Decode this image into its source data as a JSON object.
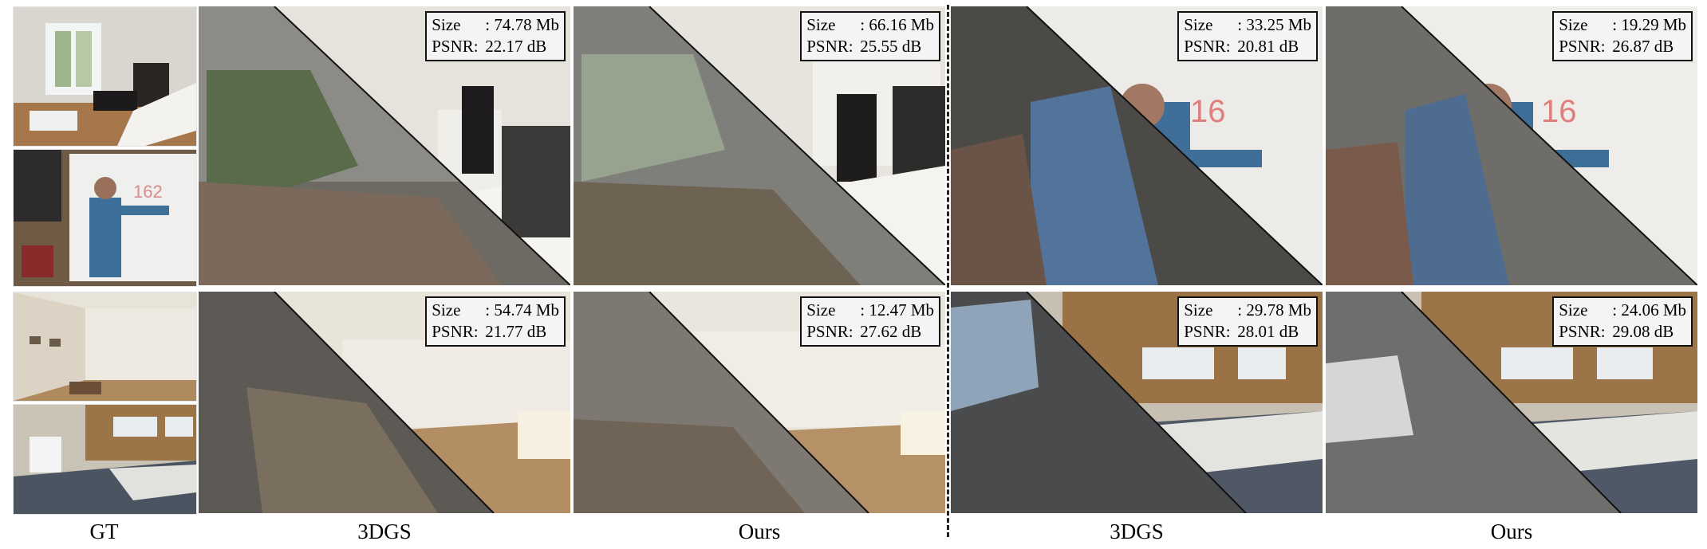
{
  "captions": {
    "gt": "GT",
    "left_3dgs": "3DGS",
    "left_ours": "Ours",
    "right_3dgs": "3DGS",
    "right_ours": "Ours"
  },
  "panels": {
    "top_left_3dgs": {
      "size_key": "Size",
      "size_val": ": 74.78 Mb",
      "psnr_key": "PSNR:",
      "psnr_val": "22.17 dB"
    },
    "top_left_ours": {
      "size_key": "Size",
      "size_val": ": 66.16 Mb",
      "psnr_key": "PSNR:",
      "psnr_val": "25.55 dB"
    },
    "top_right_3dgs": {
      "size_key": "Size",
      "size_val": ": 33.25 Mb",
      "psnr_key": "PSNR:",
      "psnr_val": "20.81 dB"
    },
    "top_right_ours": {
      "size_key": "Size",
      "size_val": ": 19.29 Mb",
      "psnr_key": "PSNR:",
      "psnr_val": "26.87 dB"
    },
    "bot_left_3dgs": {
      "size_key": "Size",
      "size_val": ": 54.74 Mb",
      "psnr_key": "PSNR:",
      "psnr_val": "21.77 dB"
    },
    "bot_left_ours": {
      "size_key": "Size",
      "size_val": ": 12.47 Mb",
      "psnr_key": "PSNR:",
      "psnr_val": "27.62 dB"
    },
    "bot_right_3dgs": {
      "size_key": "Size",
      "size_val": ": 29.78 Mb",
      "psnr_key": "PSNR:",
      "psnr_val": "28.01 dB"
    },
    "bot_right_ours": {
      "size_key": "Size",
      "size_val": ": 24.06 Mb",
      "psnr_key": "PSNR:",
      "psnr_val": "29.08 dB"
    }
  },
  "colors": {
    "border": "#111111",
    "label_bg": "#f4f4f4",
    "divider": "#222222"
  }
}
